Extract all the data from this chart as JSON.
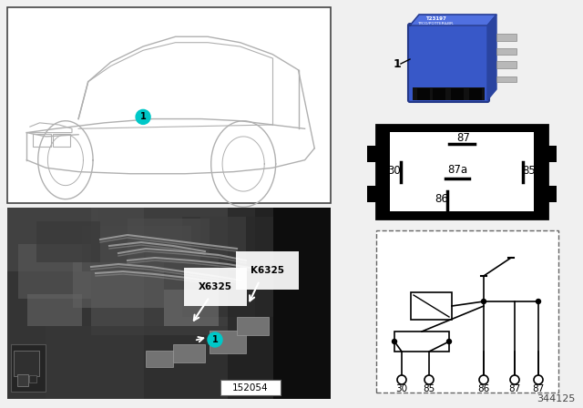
{
  "bg_color": "#f0f0f0",
  "diagram_number": "344125",
  "label_1_color": "#00c8c8",
  "pin_labels_schematic": [
    "30",
    "85",
    "86",
    "87",
    "87"
  ],
  "k_label": "K6325",
  "x_label": "X6325",
  "part_number": "152054",
  "car_line_color": "#b0b0b0",
  "relay_blue": "#3858c8",
  "relay_blue_light": "#4a6ad8",
  "relay_blue_top": "#5070e0"
}
